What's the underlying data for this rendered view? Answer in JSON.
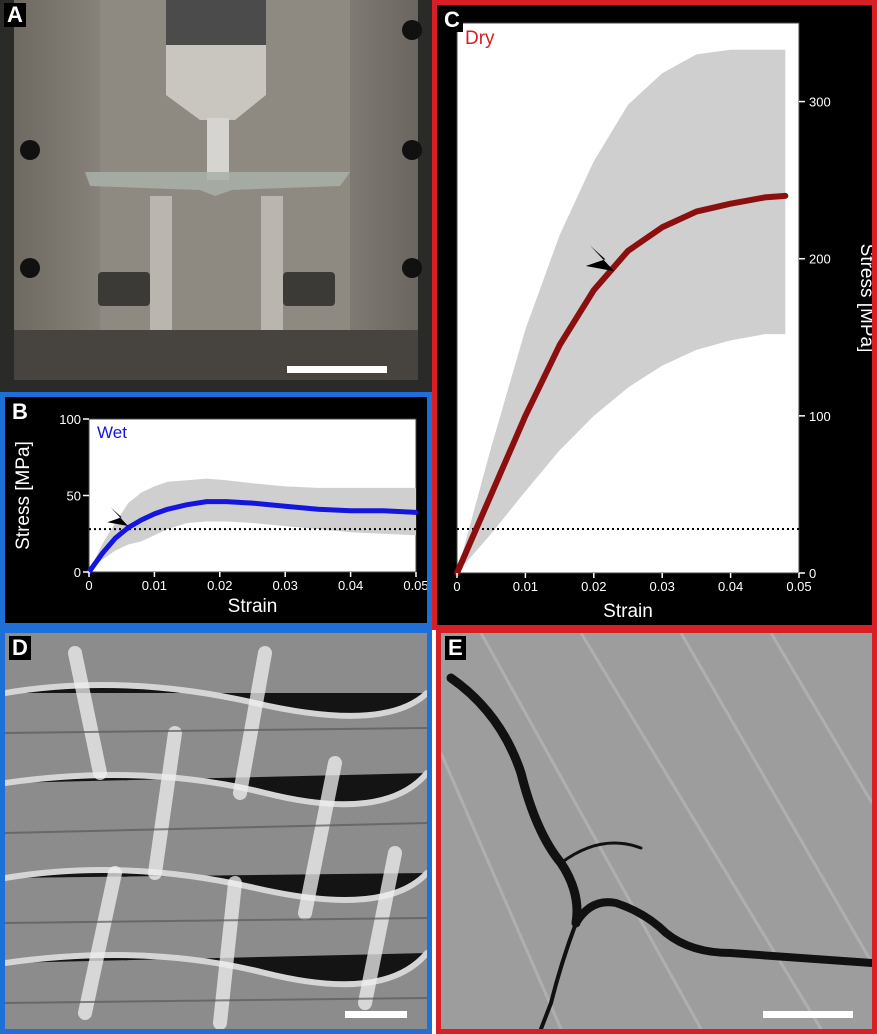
{
  "panels": {
    "a": {
      "label": "A"
    },
    "b": {
      "label": "B"
    },
    "c": {
      "label": "C"
    },
    "d": {
      "label": "D"
    },
    "e": {
      "label": "E"
    }
  },
  "colors": {
    "wet_line": "#1515e0",
    "dry_line": "#8b0f0f",
    "band": "#cfcfcf",
    "wet_border": "#1f6fd9",
    "dry_border": "#d81f26"
  },
  "chart_data": [
    {
      "id": "B",
      "type": "line",
      "title": "Wet",
      "xlabel": "Strain",
      "ylabel": "Stress [MPa]",
      "xlim": [
        0,
        0.05
      ],
      "ylim": [
        0,
        100
      ],
      "xticks": [
        "0",
        "0.01",
        "0.02",
        "0.03",
        "0.04",
        "0.05"
      ],
      "yticks": [
        "0",
        "50",
        "100"
      ],
      "reference_line_y": 28,
      "series": [
        {
          "x": [
            0,
            0.002,
            0.004,
            0.006,
            0.008,
            0.01,
            0.012,
            0.015,
            0.018,
            0.021,
            0.025,
            0.03,
            0.035,
            0.04,
            0.045,
            0.05
          ],
          "y": [
            0,
            12,
            22,
            29,
            34,
            38,
            41,
            44,
            46,
            46,
            45,
            43,
            41,
            40,
            40,
            39
          ],
          "band_upper": [
            0,
            18,
            32,
            45,
            52,
            56,
            59,
            60,
            61,
            60,
            58,
            56,
            55,
            55,
            55,
            55
          ],
          "band_lower": [
            0,
            8,
            14,
            18,
            20,
            24,
            28,
            32,
            33,
            33,
            32,
            30,
            28,
            26,
            25,
            24
          ]
        }
      ],
      "annotations": [
        {
          "type": "arrowhead",
          "x": 0.006,
          "y": 30
        }
      ]
    },
    {
      "id": "C",
      "type": "line",
      "title": "Dry",
      "xlabel": "Strain",
      "ylabel": "Stress [MPa]",
      "xlim": [
        0,
        0.05
      ],
      "ylim": [
        0,
        350
      ],
      "xticks": [
        "0",
        "0.01",
        "0.02",
        "0.03",
        "0.04",
        "0.05"
      ],
      "yticks": [
        "0",
        "100",
        "200",
        "300"
      ],
      "reference_line_y": 28,
      "series": [
        {
          "x": [
            0,
            0.005,
            0.01,
            0.015,
            0.02,
            0.025,
            0.03,
            0.035,
            0.04,
            0.045,
            0.048
          ],
          "y": [
            0,
            50,
            100,
            145,
            180,
            205,
            220,
            230,
            235,
            239,
            240
          ],
          "band_upper": [
            0,
            80,
            155,
            215,
            262,
            298,
            318,
            330,
            333,
            333,
            333
          ],
          "band_lower": [
            0,
            25,
            52,
            78,
            100,
            118,
            132,
            142,
            148,
            152,
            152
          ]
        }
      ],
      "annotations": [
        {
          "type": "arrowhead",
          "x": 0.023,
          "y": 192
        }
      ]
    }
  ]
}
